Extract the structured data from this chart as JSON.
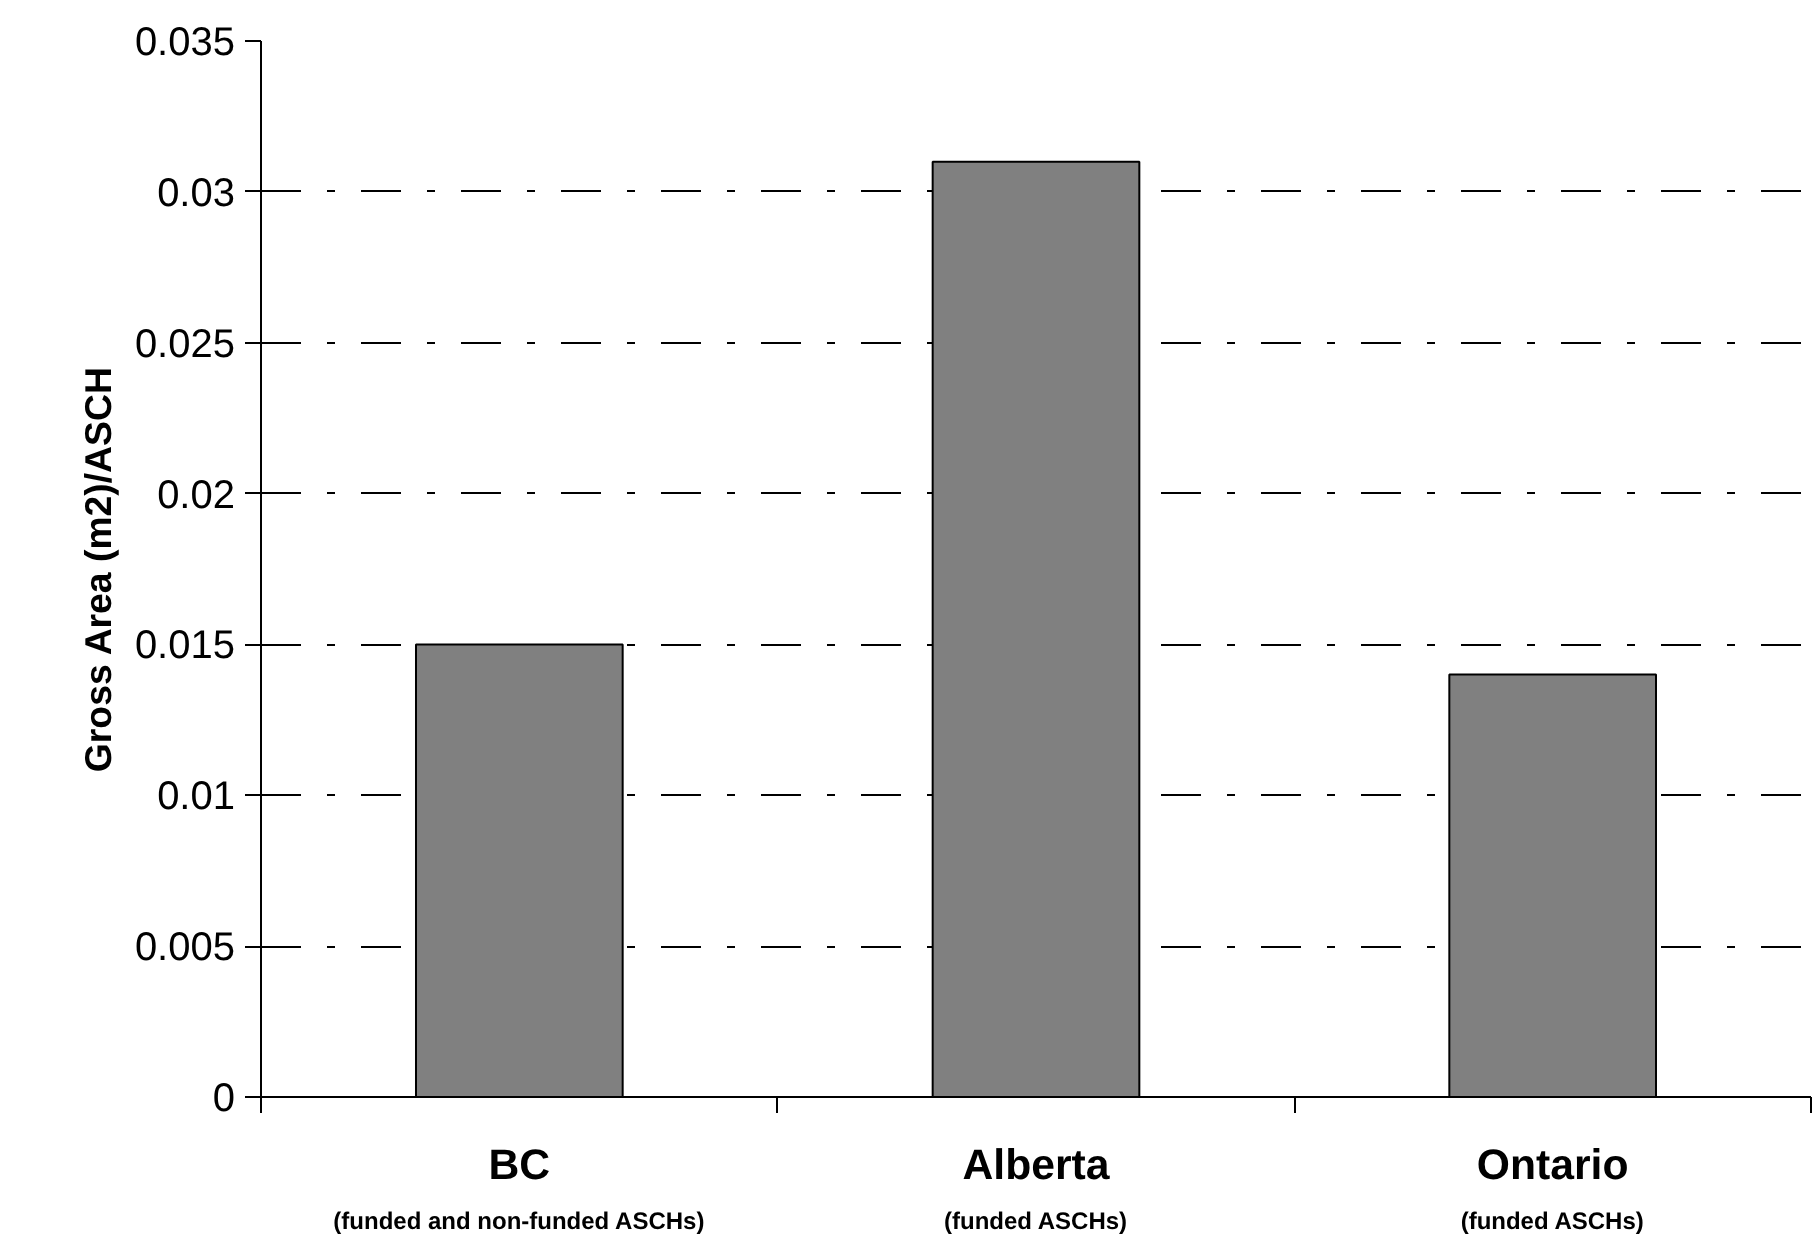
{
  "chart_data": {
    "type": "bar",
    "ylabel": "Gross Area (m2)/ASCH",
    "categories": [
      "BC\n(funded and non-funded ASCHs)",
      "Alberta\n(funded ASCHs)",
      "Ontario\n(funded ASCHs)"
    ],
    "values": [
      0.015,
      0.031,
      0.014
    ],
    "color": "#808080",
    "ylim": [
      0,
      0.035
    ],
    "yticks": [
      0,
      0.005,
      0.01,
      0.015,
      0.02,
      0.025,
      0.03,
      0.035
    ],
    "grid": "y"
  }
}
